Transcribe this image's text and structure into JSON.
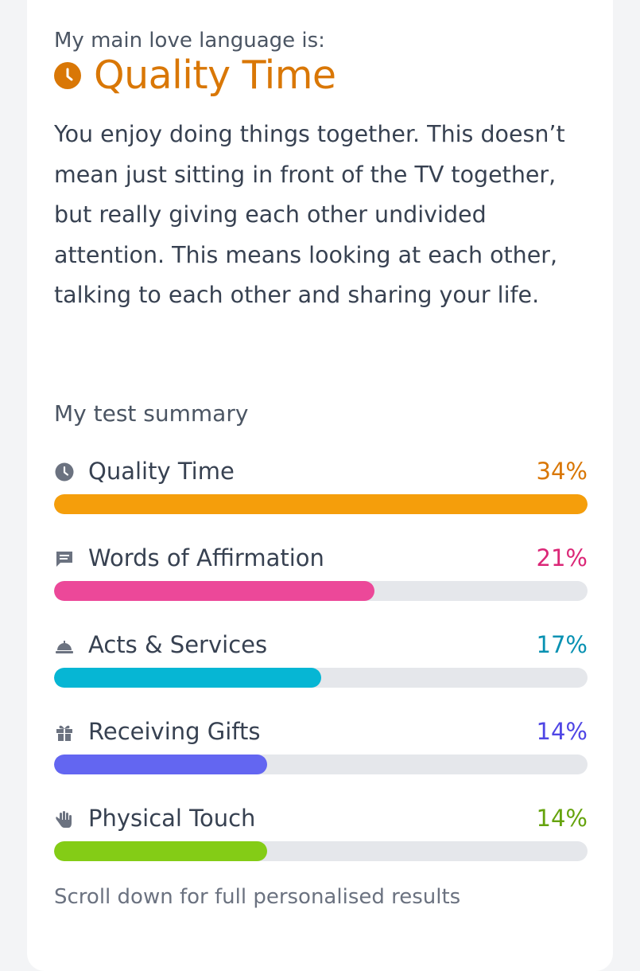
{
  "intro_label": "My main love language is:",
  "main_language": {
    "title": "Quality Time",
    "icon": "clock-icon",
    "color": "#d97706"
  },
  "description": "You enjoy doing things together. This doesn’t mean just sitting in front of the TV together, but really giving each other undivided attention. This means looking at each other, talking to each other and sharing your life.",
  "summary": {
    "heading": "My test summary",
    "items": [
      {
        "label": "Quality Time",
        "value": "34%",
        "fraction": 1.0,
        "icon": "clock-icon",
        "value_color": "#d97706",
        "bar_color": "#f59e0b"
      },
      {
        "label": "Words of Affirmation",
        "value": "21%",
        "fraction": 0.6,
        "icon": "chat-bubble-icon",
        "value_color": "#db2777",
        "bar_color": "#ec4899"
      },
      {
        "label": "Acts & Services",
        "value": "17%",
        "fraction": 0.5,
        "icon": "service-bell-icon",
        "value_color": "#0891b2",
        "bar_color": "#06b6d4"
      },
      {
        "label": "Receiving Gifts",
        "value": "14%",
        "fraction": 0.4,
        "icon": "gift-icon",
        "value_color": "#4f46e5",
        "bar_color": "#6366f1"
      },
      {
        "label": "Physical Touch",
        "value": "14%",
        "fraction": 0.4,
        "icon": "hand-icon",
        "value_color": "#65a30d",
        "bar_color": "#84cc16"
      }
    ]
  },
  "footer_note": "Scroll down for full personalised results"
}
